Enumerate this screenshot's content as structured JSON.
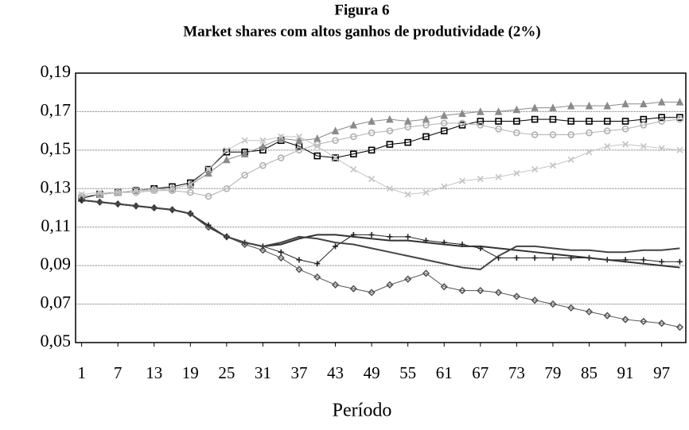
{
  "chart_data": {
    "type": "line",
    "title": "Figura 6",
    "subtitle": "Market shares com altos ganhos de produtividade (2%)",
    "x_label": "Período",
    "x": [
      1,
      4,
      7,
      10,
      13,
      16,
      19,
      22,
      25,
      28,
      31,
      34,
      37,
      40,
      43,
      46,
      49,
      52,
      55,
      58,
      61,
      64,
      67,
      70,
      73,
      76,
      79,
      82,
      85,
      88,
      91,
      94,
      97,
      100
    ],
    "xlim": [
      0,
      101
    ],
    "xticks": [
      1,
      7,
      13,
      19,
      25,
      31,
      37,
      43,
      49,
      55,
      61,
      67,
      73,
      79,
      85,
      91,
      97
    ],
    "ylim": [
      0.05,
      0.19
    ],
    "yticks": [
      {
        "value": 0.05,
        "label": "0,05"
      },
      {
        "value": 0.07,
        "label": "0,07"
      },
      {
        "value": 0.09,
        "label": "0,09"
      },
      {
        "value": 0.11,
        "label": "0,11"
      },
      {
        "value": 0.13,
        "label": "0,13"
      },
      {
        "value": 0.15,
        "label": "0,15"
      },
      {
        "value": 0.17,
        "label": "0,17"
      },
      {
        "value": 0.19,
        "label": "0,19"
      }
    ],
    "grid": true,
    "series": [
      {
        "color": "#000000",
        "marker": "square",
        "values": [
          0.125,
          0.127,
          0.128,
          0.129,
          0.13,
          0.131,
          0.133,
          0.14,
          0.149,
          0.149,
          0.15,
          0.155,
          0.152,
          0.147,
          0.146,
          0.148,
          0.15,
          0.153,
          0.154,
          0.157,
          0.16,
          0.163,
          0.165,
          0.165,
          0.165,
          0.166,
          0.166,
          0.165,
          0.165,
          0.165,
          0.165,
          0.166,
          0.167,
          0.167
        ]
      },
      {
        "color": "#8a8a8a",
        "marker": "triangle",
        "values": [
          0.126,
          0.127,
          0.128,
          0.129,
          0.13,
          0.13,
          0.132,
          0.138,
          0.145,
          0.148,
          0.152,
          0.156,
          0.155,
          0.156,
          0.16,
          0.163,
          0.165,
          0.166,
          0.165,
          0.166,
          0.168,
          0.169,
          0.17,
          0.17,
          0.171,
          0.172,
          0.172,
          0.173,
          0.173,
          0.173,
          0.174,
          0.174,
          0.175,
          0.175
        ]
      },
      {
        "color": "#b0b0b0",
        "marker": "circle",
        "values": [
          0.126,
          0.127,
          0.128,
          0.128,
          0.129,
          0.129,
          0.128,
          0.126,
          0.13,
          0.137,
          0.142,
          0.146,
          0.15,
          0.153,
          0.155,
          0.157,
          0.159,
          0.16,
          0.162,
          0.163,
          0.164,
          0.164,
          0.163,
          0.161,
          0.159,
          0.158,
          0.158,
          0.158,
          0.159,
          0.16,
          0.161,
          0.163,
          0.165,
          0.166
        ]
      },
      {
        "color": "#c4c4c4",
        "marker": "x",
        "values": [
          0.127,
          0.128,
          0.128,
          0.129,
          0.129,
          0.13,
          0.132,
          0.14,
          0.15,
          0.155,
          0.155,
          0.157,
          0.157,
          0.152,
          0.146,
          0.14,
          0.135,
          0.13,
          0.127,
          0.128,
          0.131,
          0.134,
          0.135,
          0.136,
          0.138,
          0.14,
          0.142,
          0.145,
          0.149,
          0.152,
          0.153,
          0.152,
          0.151,
          0.15
        ]
      },
      {
        "color": "#555555",
        "marker": "diamond",
        "values": [
          0.124,
          0.123,
          0.122,
          0.121,
          0.12,
          0.119,
          0.117,
          0.11,
          0.105,
          0.101,
          0.098,
          0.094,
          0.088,
          0.084,
          0.08,
          0.078,
          0.076,
          0.08,
          0.083,
          0.086,
          0.079,
          0.077,
          0.077,
          0.076,
          0.074,
          0.072,
          0.07,
          0.068,
          0.066,
          0.064,
          0.062,
          0.061,
          0.06,
          0.058
        ]
      },
      {
        "color": "#222222",
        "marker": "plus",
        "values": [
          0.124,
          0.123,
          0.122,
          0.121,
          0.12,
          0.119,
          0.117,
          0.111,
          0.105,
          0.102,
          0.1,
          0.097,
          0.093,
          0.091,
          0.1,
          0.106,
          0.106,
          0.105,
          0.105,
          0.103,
          0.102,
          0.101,
          0.099,
          0.094,
          0.094,
          0.094,
          0.094,
          0.094,
          0.094,
          0.093,
          0.093,
          0.093,
          0.092,
          0.092
        ]
      },
      {
        "color": "#333333",
        "marker": "none",
        "values": [
          0.124,
          0.123,
          0.122,
          0.121,
          0.12,
          0.119,
          0.117,
          0.11,
          0.105,
          0.102,
          0.1,
          0.101,
          0.104,
          0.106,
          0.106,
          0.105,
          0.104,
          0.103,
          0.103,
          0.102,
          0.101,
          0.1,
          0.1,
          0.099,
          0.098,
          0.097,
          0.096,
          0.095,
          0.094,
          0.093,
          0.092,
          0.091,
          0.09,
          0.089
        ]
      },
      {
        "color": "#444444",
        "marker": "none",
        "values": [
          0.124,
          0.123,
          0.122,
          0.121,
          0.12,
          0.119,
          0.117,
          0.11,
          0.105,
          0.102,
          0.1,
          0.102,
          0.105,
          0.104,
          0.102,
          0.101,
          0.099,
          0.097,
          0.095,
          0.093,
          0.091,
          0.089,
          0.088,
          0.095,
          0.1,
          0.1,
          0.099,
          0.098,
          0.098,
          0.097,
          0.097,
          0.098,
          0.098,
          0.099
        ]
      }
    ]
  }
}
